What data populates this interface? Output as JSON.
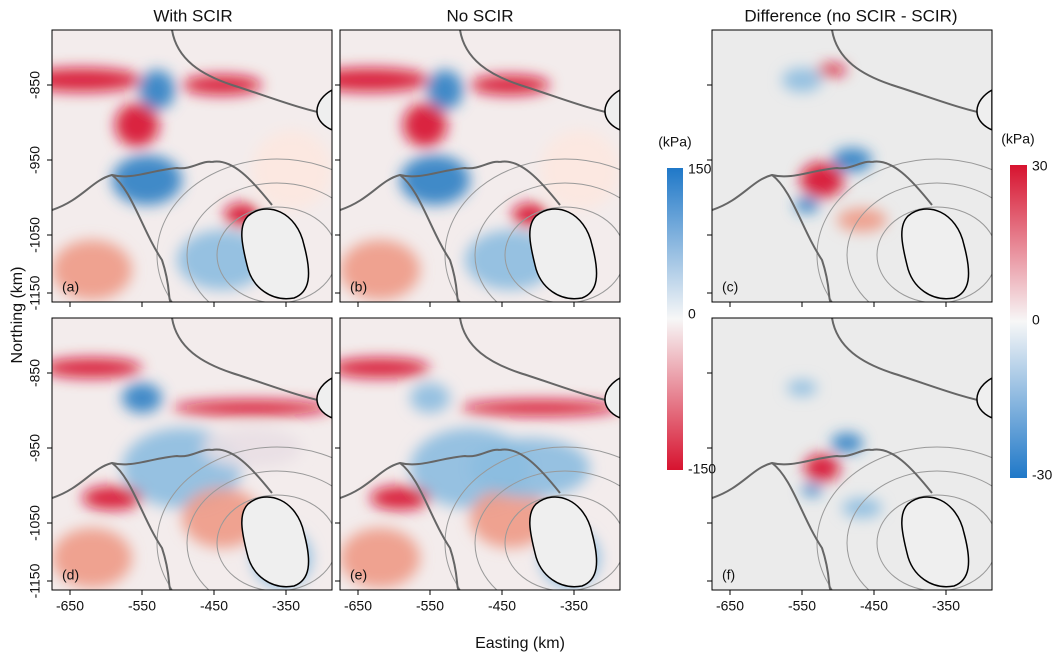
{
  "column_titles": [
    "With SCIR",
    "No SCIR",
    "Difference (no SCIR - SCIR)"
  ],
  "panels": [
    {
      "label": "(a)"
    },
    {
      "label": "(b)"
    },
    {
      "label": "(c)"
    },
    {
      "label": "(d)"
    },
    {
      "label": "(e)"
    },
    {
      "label": "(f)"
    }
  ],
  "y_axis": {
    "title": "Northing (km)",
    "ticks": [
      -850,
      -950,
      -1050,
      -1150
    ]
  },
  "x_axis": {
    "title": "Easting (km)",
    "ticks": [
      -650,
      -550,
      -450,
      -350
    ]
  },
  "colorbars": [
    {
      "unit": "(kPa)",
      "ticks": [
        150,
        0,
        -150
      ]
    },
    {
      "unit": "(kPa)",
      "ticks": [
        30,
        0,
        -30
      ]
    }
  ]
}
